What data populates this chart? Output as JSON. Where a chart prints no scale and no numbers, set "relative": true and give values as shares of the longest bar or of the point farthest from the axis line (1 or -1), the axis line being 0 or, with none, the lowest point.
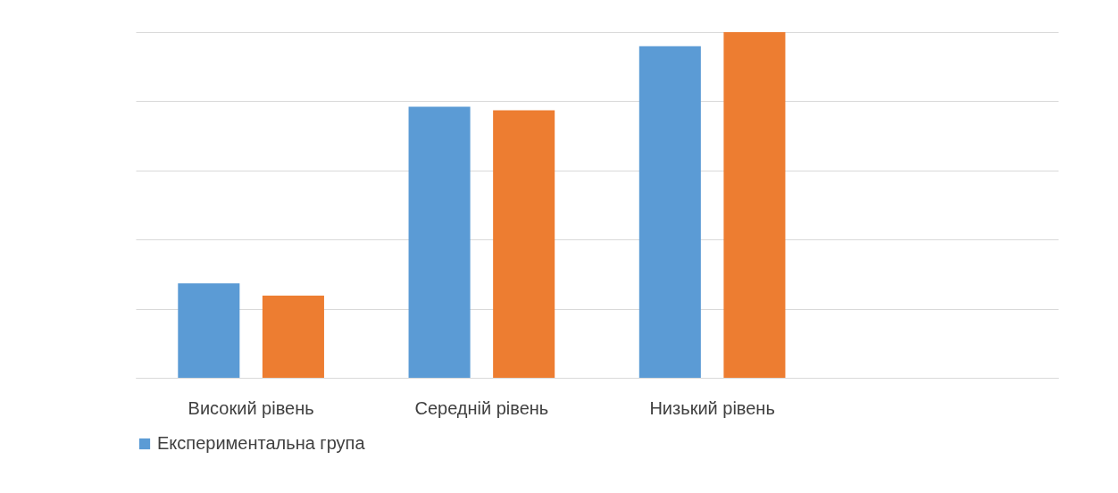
{
  "chart_data": {
    "type": "bar",
    "categories": [
      "Високий рівень",
      "Середній рівень",
      "Низький рівень",
      null
    ],
    "relative": true,
    "grid": "y",
    "legend": "bottom",
    "series": [
      {
        "name": "Експериментальна група",
        "color": "#5b9bd5",
        "values": [
          0.273,
          0.784,
          0.959,
          null
        ]
      },
      {
        "color": "#ed7d31",
        "values": [
          0.238,
          0.774,
          1,
          null
        ]
      }
    ]
  }
}
